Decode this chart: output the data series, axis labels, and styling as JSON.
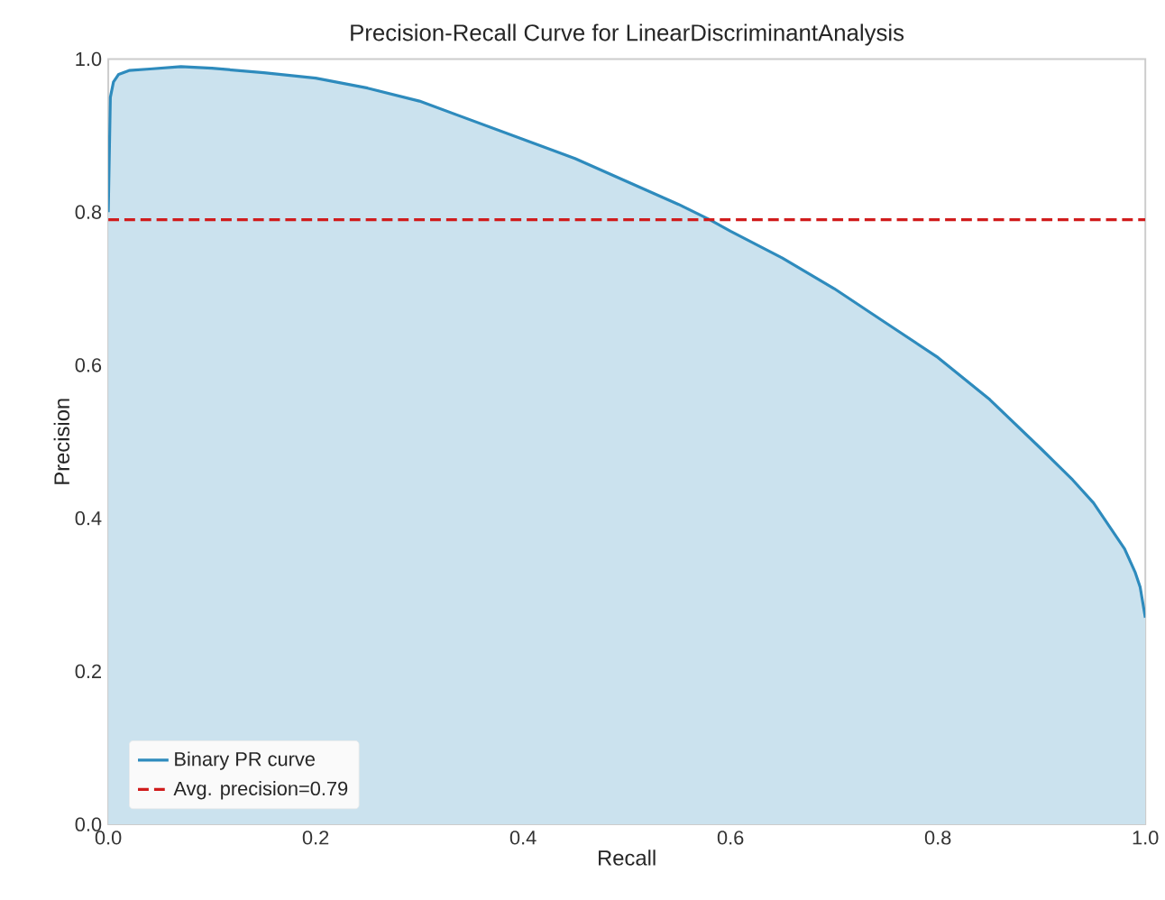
{
  "chart_data": {
    "type": "area",
    "title": "Precision-Recall Curve for LinearDiscriminantAnalysis",
    "xlabel": "Recall",
    "ylabel": "Precision",
    "xlim": [
      0,
      1
    ],
    "ylim": [
      0,
      1
    ],
    "xticks": [
      {
        "value": 0,
        "label": "0.0"
      },
      0.2,
      0.4,
      0.6,
      0.8,
      {
        "value": 1,
        "label": "1.0"
      }
    ],
    "yticks": [
      {
        "value": 0,
        "label": "0.0"
      },
      0.2,
      0.4,
      0.6,
      0.8,
      {
        "value": 1,
        "label": "1.0"
      }
    ],
    "grid": false,
    "legend": "bottom left",
    "series": [
      {
        "name": "Binary PR curve",
        "color": "#2e8bbd",
        "x": [
          0,
          0.002,
          0.005,
          0.01,
          0.02,
          0.04,
          0.07,
          0.1,
          0.15,
          0.2,
          0.25,
          0.3,
          0.35,
          0.4,
          0.45,
          0.5,
          0.55,
          0.58,
          0.6,
          0.65,
          0.7,
          0.75,
          0.8,
          0.85,
          0.9,
          0.93,
          0.95,
          0.97,
          0.98,
          0.99,
          0.995,
          1.0
        ],
        "values": [
          0.8,
          0.95,
          0.97,
          0.98,
          0.985,
          0.987,
          0.99,
          0.988,
          0.982,
          0.975,
          0.962,
          0.945,
          0.92,
          0.895,
          0.87,
          0.84,
          0.81,
          0.79,
          0.775,
          0.74,
          0.7,
          0.655,
          0.61,
          0.555,
          0.49,
          0.45,
          0.42,
          0.38,
          0.36,
          0.33,
          0.31,
          0.27
        ]
      },
      {
        "name": "Avg. precision=0.79",
        "type": "line",
        "color": "#d01c1c",
        "line_style": "dashed",
        "x": [
          0,
          1
        ],
        "values": [
          0.79,
          0.79
        ]
      }
    ]
  }
}
